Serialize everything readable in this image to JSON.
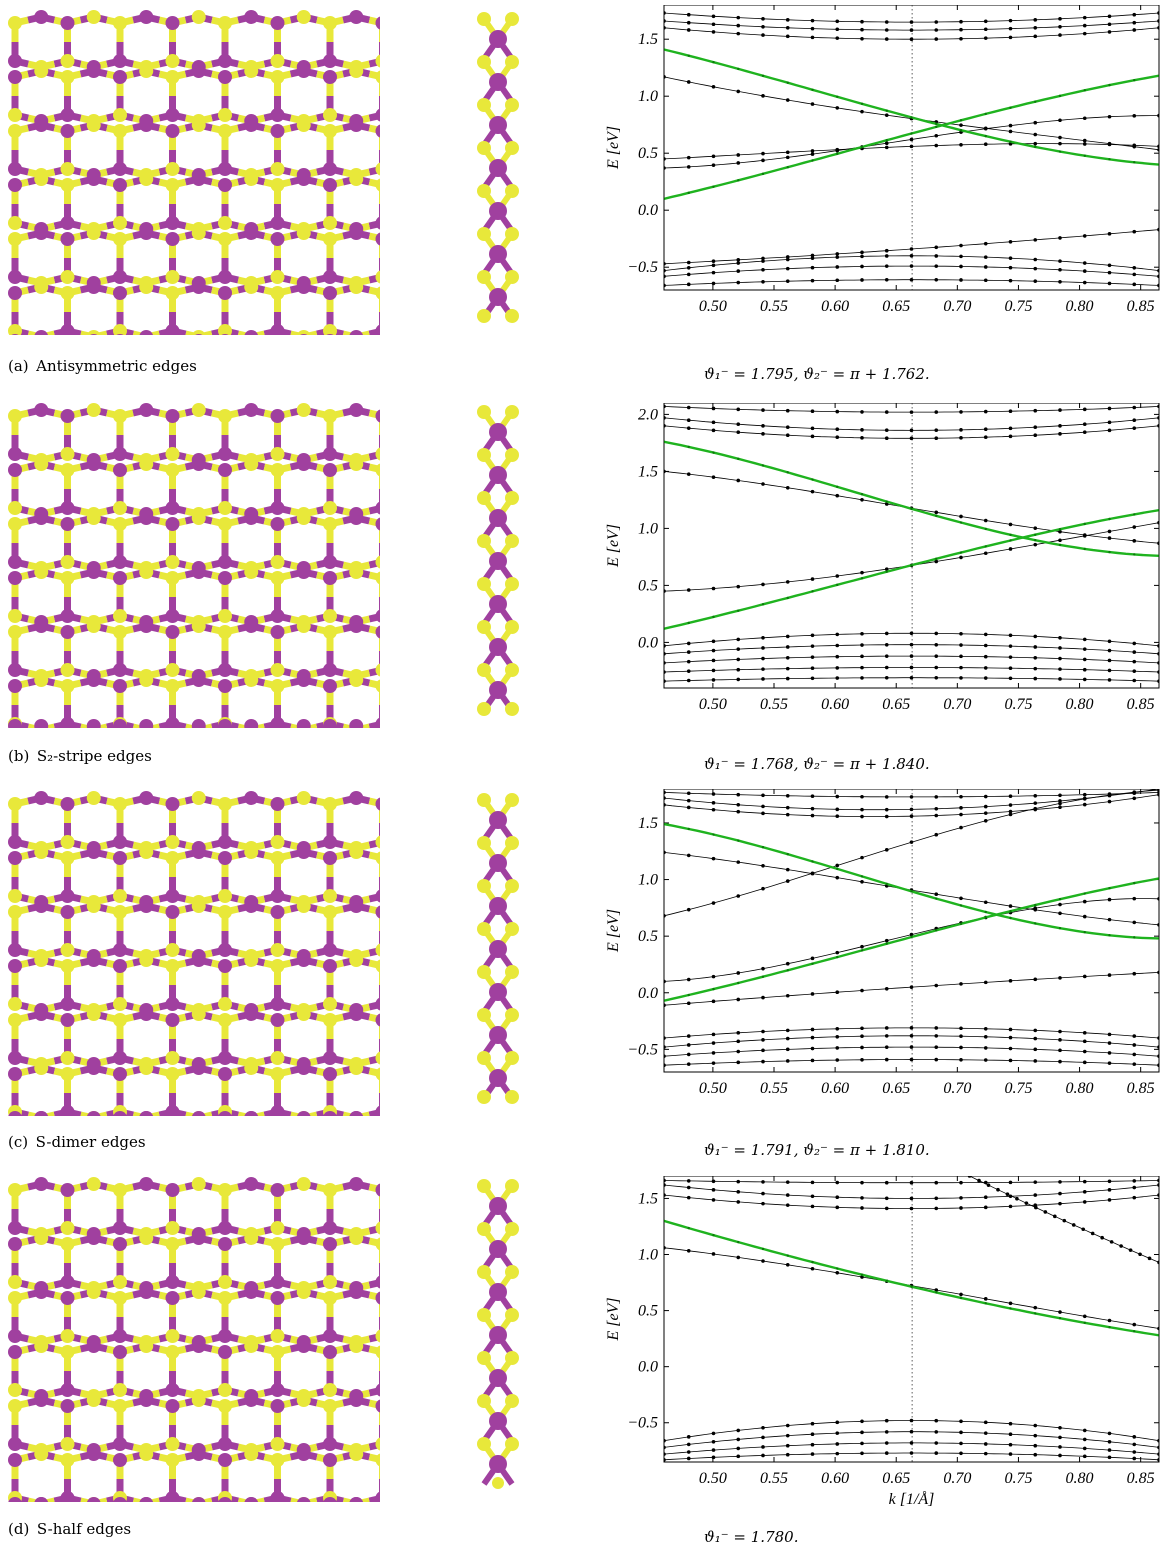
{
  "panels": [
    {
      "id": "a",
      "label": "(a)",
      "caption": "Antisymmetric edges",
      "theta": "ϑ₁⁻ = 1.795, ϑ₂⁻ = π + 1.762.",
      "bottom_edge": "plain",
      "side_bottom": "cap"
    },
    {
      "id": "b",
      "label": "(b)",
      "caption": "S₂-stripe edges",
      "theta": "ϑ₁⁻ = 1.768, ϑ₂⁻ = π + 1.840.",
      "bottom_edge": "stripe",
      "side_bottom": "cap"
    },
    {
      "id": "c",
      "label": "(c)",
      "caption": "S-dimer edges",
      "theta": "ϑ₁⁻ = 1.791, ϑ₂⁻ = π + 1.810.",
      "bottom_edge": "dimer",
      "side_bottom": "cap"
    },
    {
      "id": "d",
      "label": "(d)",
      "caption": "S-half edges",
      "theta": "ϑ₁⁻ = 1.780.",
      "bottom_edge": "half",
      "side_bottom": "dot"
    }
  ],
  "colors": {
    "metal": "#a0409f",
    "sulfur": "#e8e83a",
    "edge_band": "#1fb31f",
    "band": "#000000"
  },
  "chart_data": [
    {
      "type": "line",
      "panel": "a",
      "xlabel": "",
      "ylabel": "E [eV]",
      "xlim": [
        0.46,
        0.865
      ],
      "ylim": [
        -0.7,
        1.8
      ],
      "xticks": [
        0.5,
        0.55,
        0.6,
        0.65,
        0.7,
        0.75,
        0.8,
        0.85
      ],
      "yticks": [
        -0.5,
        0.0,
        0.5,
        1.0,
        1.5
      ],
      "vline": 0.663,
      "green": [
        [
          [
            0.46,
            1.41
          ],
          [
            0.6,
            1.0
          ],
          [
            0.7,
            0.71
          ],
          [
            0.865,
            0.4
          ]
        ],
        [
          [
            0.46,
            0.1
          ],
          [
            0.6,
            0.49
          ],
          [
            0.7,
            0.78
          ],
          [
            0.865,
            1.18
          ]
        ]
      ],
      "black": [
        [
          [
            0.46,
            1.66
          ],
          [
            0.663,
            1.58
          ],
          [
            0.865,
            1.66
          ]
        ],
        [
          [
            0.46,
            1.73
          ],
          [
            0.663,
            1.65
          ],
          [
            0.865,
            1.73
          ]
        ],
        [
          [
            0.46,
            1.6
          ],
          [
            0.663,
            1.5
          ],
          [
            0.865,
            1.6
          ]
        ],
        [
          [
            0.46,
            1.17
          ],
          [
            0.6,
            0.9
          ],
          [
            0.7,
            0.75
          ],
          [
            0.865,
            0.53
          ]
        ],
        [
          [
            0.46,
            0.45
          ],
          [
            0.6,
            0.53
          ],
          [
            0.663,
            0.56
          ],
          [
            0.865,
            0.56
          ]
        ],
        [
          [
            0.46,
            0.37
          ],
          [
            0.6,
            0.52
          ],
          [
            0.7,
            0.68
          ],
          [
            0.865,
            0.83
          ]
        ],
        [
          [
            0.46,
            -0.47
          ],
          [
            0.663,
            -0.34
          ],
          [
            0.865,
            -0.17
          ]
        ],
        [
          [
            0.46,
            -0.53
          ],
          [
            0.663,
            -0.4
          ],
          [
            0.865,
            -0.53
          ]
        ],
        [
          [
            0.46,
            -0.58
          ],
          [
            0.663,
            -0.49
          ],
          [
            0.865,
            -0.58
          ]
        ],
        [
          [
            0.46,
            -0.66
          ],
          [
            0.663,
            -0.61
          ],
          [
            0.865,
            -0.66
          ]
        ]
      ]
    },
    {
      "type": "line",
      "panel": "b",
      "xlabel": "",
      "ylabel": "E [eV]",
      "xlim": [
        0.46,
        0.865
      ],
      "ylim": [
        -0.4,
        2.1
      ],
      "xticks": [
        0.5,
        0.55,
        0.6,
        0.65,
        0.7,
        0.75,
        0.8,
        0.85
      ],
      "yticks": [
        0.0,
        0.5,
        1.0,
        1.5,
        2.0
      ],
      "vline": 0.663,
      "green": [
        [
          [
            0.46,
            1.76
          ],
          [
            0.6,
            1.37
          ],
          [
            0.7,
            1.06
          ],
          [
            0.865,
            0.76
          ]
        ],
        [
          [
            0.46,
            0.12
          ],
          [
            0.6,
            0.5
          ],
          [
            0.7,
            0.78
          ],
          [
            0.865,
            1.16
          ]
        ]
      ],
      "black": [
        [
          [
            0.46,
            2.07
          ],
          [
            0.663,
            2.02
          ],
          [
            0.865,
            2.07
          ]
        ],
        [
          [
            0.46,
            1.97
          ],
          [
            0.663,
            1.86
          ],
          [
            0.865,
            1.97
          ]
        ],
        [
          [
            0.46,
            1.9
          ],
          [
            0.663,
            1.79
          ],
          [
            0.865,
            1.9
          ]
        ],
        [
          [
            0.46,
            1.5
          ],
          [
            0.6,
            1.29
          ],
          [
            0.7,
            1.11
          ],
          [
            0.865,
            0.87
          ]
        ],
        [
          [
            0.46,
            0.45
          ],
          [
            0.6,
            0.58
          ],
          [
            0.7,
            0.74
          ],
          [
            0.865,
            1.05
          ]
        ],
        [
          [
            0.46,
            -0.03
          ],
          [
            0.663,
            0.08
          ],
          [
            0.865,
            -0.03
          ]
        ],
        [
          [
            0.46,
            -0.1
          ],
          [
            0.663,
            -0.02
          ],
          [
            0.865,
            -0.1
          ]
        ],
        [
          [
            0.46,
            -0.18
          ],
          [
            0.663,
            -0.12
          ],
          [
            0.865,
            -0.18
          ]
        ],
        [
          [
            0.46,
            -0.26
          ],
          [
            0.663,
            -0.22
          ],
          [
            0.865,
            -0.26
          ]
        ],
        [
          [
            0.46,
            -0.34
          ],
          [
            0.663,
            -0.31
          ],
          [
            0.865,
            -0.34
          ]
        ]
      ]
    },
    {
      "type": "line",
      "panel": "c",
      "xlabel": "",
      "ylabel": "E [eV]",
      "xlim": [
        0.46,
        0.865
      ],
      "ylim": [
        -0.7,
        1.8
      ],
      "xticks": [
        0.5,
        0.55,
        0.6,
        0.65,
        0.7,
        0.75,
        0.8,
        0.85
      ],
      "yticks": [
        -0.5,
        0.0,
        0.5,
        1.0,
        1.5
      ],
      "vline": 0.663,
      "green": [
        [
          [
            0.46,
            1.49
          ],
          [
            0.6,
            1.1
          ],
          [
            0.7,
            0.78
          ],
          [
            0.865,
            0.48
          ]
        ],
        [
          [
            0.46,
            -0.07
          ],
          [
            0.6,
            0.31
          ],
          [
            0.7,
            0.6
          ],
          [
            0.865,
            1.01
          ]
        ]
      ],
      "black": [
        [
          [
            0.46,
            1.77
          ],
          [
            0.663,
            1.73
          ],
          [
            0.865,
            1.77
          ]
        ],
        [
          [
            0.46,
            1.72
          ],
          [
            0.663,
            1.62
          ],
          [
            0.865,
            1.8
          ]
        ],
        [
          [
            0.46,
            1.66
          ],
          [
            0.663,
            1.56
          ],
          [
            0.865,
            1.75
          ]
        ],
        [
          [
            0.46,
            1.24
          ],
          [
            0.6,
            1.02
          ],
          [
            0.7,
            0.84
          ],
          [
            0.865,
            0.6
          ]
        ],
        [
          [
            0.46,
            0.68
          ],
          [
            0.58,
            1.05
          ],
          [
            0.7,
            1.45
          ],
          [
            0.865,
            1.79
          ]
        ],
        [
          [
            0.46,
            0.1
          ],
          [
            0.6,
            0.35
          ],
          [
            0.7,
            0.61
          ],
          [
            0.865,
            0.83
          ]
        ],
        [
          [
            0.46,
            -0.11
          ],
          [
            0.663,
            0.05
          ],
          [
            0.865,
            0.18
          ]
        ],
        [
          [
            0.46,
            -0.4
          ],
          [
            0.663,
            -0.31
          ],
          [
            0.865,
            -0.4
          ]
        ],
        [
          [
            0.46,
            -0.48
          ],
          [
            0.663,
            -0.38
          ],
          [
            0.865,
            -0.48
          ]
        ],
        [
          [
            0.46,
            -0.56
          ],
          [
            0.663,
            -0.48
          ],
          [
            0.865,
            -0.56
          ]
        ],
        [
          [
            0.46,
            -0.64
          ],
          [
            0.663,
            -0.59
          ],
          [
            0.865,
            -0.64
          ]
        ]
      ]
    },
    {
      "type": "line",
      "panel": "d",
      "xlabel": "k [1/Å]",
      "ylabel": "E [eV]",
      "xlim": [
        0.46,
        0.865
      ],
      "ylim": [
        -0.85,
        1.7
      ],
      "xticks": [
        0.5,
        0.55,
        0.6,
        0.65,
        0.7,
        0.75,
        0.8,
        0.85
      ],
      "yticks": [
        -0.5,
        0.0,
        0.5,
        1.0,
        1.5
      ],
      "vline": 0.663,
      "green": [
        [
          [
            0.46,
            1.3
          ],
          [
            0.6,
            0.88
          ],
          [
            0.7,
            0.62
          ],
          [
            0.865,
            0.28
          ]
        ]
      ],
      "black": [
        [
          [
            0.46,
            1.66
          ],
          [
            0.663,
            1.64
          ],
          [
            0.865,
            1.66
          ]
        ],
        [
          [
            0.46,
            1.62
          ],
          [
            0.663,
            1.5
          ],
          [
            0.865,
            1.62
          ]
        ],
        [
          [
            0.46,
            1.53
          ],
          [
            0.663,
            1.41
          ],
          [
            0.865,
            1.53
          ]
        ],
        [
          [
            0.46,
            1.06
          ],
          [
            0.6,
            0.84
          ],
          [
            0.7,
            0.65
          ],
          [
            0.865,
            0.34
          ]
        ],
        [
          [
            0.71,
            1.7
          ],
          [
            0.8,
            1.24
          ],
          [
            0.865,
            0.93
          ]
        ],
        [
          [
            0.46,
            -0.66
          ],
          [
            0.663,
            -0.48
          ],
          [
            0.865,
            -0.66
          ]
        ],
        [
          [
            0.46,
            -0.72
          ],
          [
            0.663,
            -0.58
          ],
          [
            0.865,
            -0.72
          ]
        ],
        [
          [
            0.46,
            -0.78
          ],
          [
            0.663,
            -0.68
          ],
          [
            0.865,
            -0.78
          ]
        ],
        [
          [
            0.46,
            -0.83
          ],
          [
            0.663,
            -0.77
          ],
          [
            0.865,
            -0.83
          ]
        ]
      ]
    }
  ]
}
